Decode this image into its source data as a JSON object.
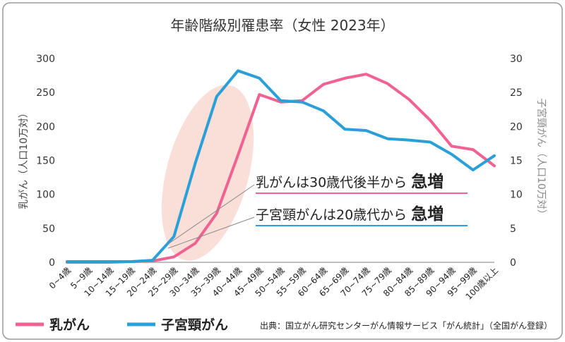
{
  "chart_data": {
    "type": "line",
    "title": "年齢階級別罹患率（女性 2023年）",
    "ylabel_left": "乳がん（人口10万対）",
    "ylabel_right": "子宮頸がん（人口10万対）",
    "categories": [
      "0~4歳",
      "5~9歳",
      "10~14歳",
      "15~19歳",
      "20~24歳",
      "25~29歳",
      "30~34歳",
      "35~39歳",
      "40~44歳",
      "45~49歳",
      "50~54歳",
      "55~59歳",
      "60~64歳",
      "65~69歳",
      "70~74歳",
      "75~79歳",
      "80~84歳",
      "85~89歳",
      "90~94歳",
      "95~99歳",
      "100歳以上"
    ],
    "left_axis": {
      "min": 0,
      "max": 300,
      "ticks": [
        "0",
        "50",
        "100",
        "150",
        "200",
        "250",
        "300"
      ]
    },
    "right_axis": {
      "min": 0,
      "max": 30,
      "ticks": [
        "0",
        "5",
        "10",
        "15",
        "20",
        "25",
        "30"
      ]
    },
    "series": [
      {
        "name": "乳がん",
        "axis": "left",
        "color": "#F06292",
        "values": [
          0,
          0,
          0,
          1,
          2,
          8,
          28,
          72,
          158,
          247,
          236,
          238,
          262,
          271,
          277,
          263,
          240,
          209,
          171,
          166,
          142
        ]
      },
      {
        "name": "子宮頸がん",
        "axis": "right",
        "color": "#2A9FD8",
        "values": [
          0.1,
          0.1,
          0.1,
          0.1,
          0.3,
          3.8,
          14.6,
          24.4,
          28.2,
          27.1,
          23.8,
          23.6,
          22.3,
          19.6,
          19.4,
          18.2,
          18.0,
          17.7,
          15.9,
          13.6,
          15.7
        ]
      }
    ],
    "annotations": {
      "breast": {
        "text": "乳がんは30歳代後半から",
        "emph": "急増"
      },
      "cervical": {
        "text": "子宮頸がんは20歳代から",
        "emph": "急増"
      }
    },
    "source": "出典：国立がん研究センターがん情報サービス「がん統計」（全国がん登録）"
  },
  "colors": {
    "highlight": "#F8D4CC",
    "axis": "#999999",
    "text": "#333333"
  }
}
